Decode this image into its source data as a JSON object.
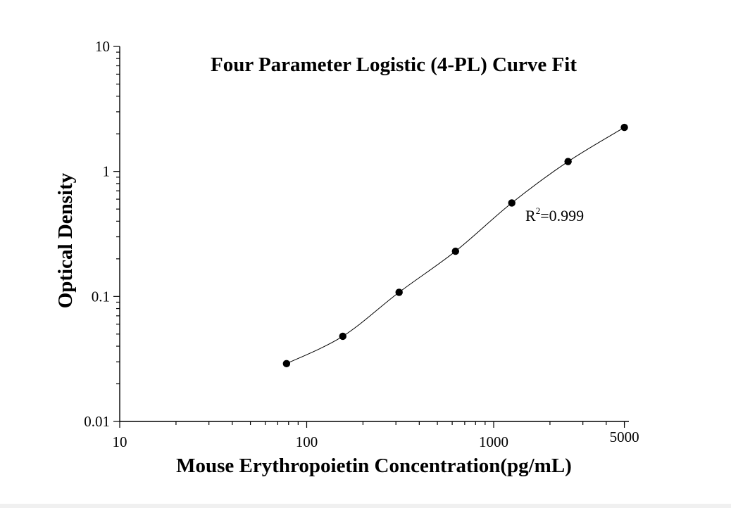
{
  "chart_data": {
    "type": "scatter",
    "title": "Four Parameter Logistic (4-PL) Curve Fit",
    "xlabel": "Mouse Erythropoietin Concentration(pg/mL)",
    "ylabel": "Optical Density",
    "xscale": "log",
    "yscale": "log",
    "xlim": [
      10,
      5500
    ],
    "ylim": [
      0.01,
      10
    ],
    "x_ticks": [
      {
        "value": 10,
        "label": "10"
      },
      {
        "value": 100,
        "label": "100"
      },
      {
        "value": 1000,
        "label": "1000"
      },
      {
        "value": 5000,
        "label": "5000"
      }
    ],
    "y_ticks": [
      {
        "value": 0.01,
        "label": "0.01"
      },
      {
        "value": 0.1,
        "label": "0.1"
      },
      {
        "value": 1,
        "label": "1"
      },
      {
        "value": 10,
        "label": "10"
      }
    ],
    "grid": false,
    "series": [
      {
        "points": [
          {
            "x": 78,
            "y": 0.029
          },
          {
            "x": 156,
            "y": 0.048
          },
          {
            "x": 312,
            "y": 0.108
          },
          {
            "x": 625,
            "y": 0.23
          },
          {
            "x": 1250,
            "y": 0.56
          },
          {
            "x": 2500,
            "y": 1.2
          },
          {
            "x": 5000,
            "y": 2.25
          }
        ]
      }
    ],
    "annotation": {
      "r2_prefix": "R",
      "r2_exponent": "2",
      "r2_value": "=0.999"
    }
  }
}
